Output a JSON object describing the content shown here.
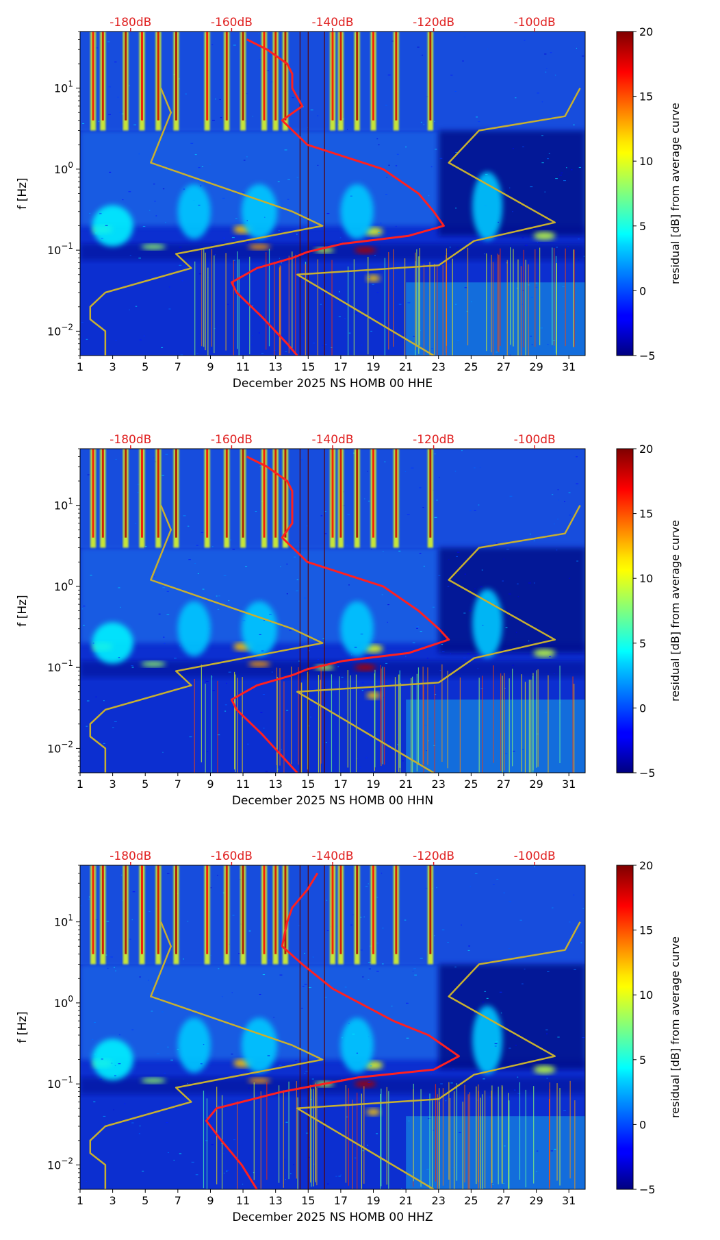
{
  "chart_data": [
    {
      "type": "heatmap",
      "xlabel": "December 2025 NS HOMB 00 HHE",
      "ylabel": "f [Hz]",
      "colorbar_label": "residual [dB] from average curve",
      "x_ticks": [
        "1",
        "3",
        "5",
        "7",
        "9",
        "11",
        "13",
        "15",
        "17",
        "19",
        "21",
        "23",
        "25",
        "27",
        "29",
        "31"
      ],
      "y_ticks": [
        "10^-2",
        "10^-1",
        "10^0",
        "10^1"
      ],
      "top_ticks": [
        "-180dB",
        "-160dB",
        "-140dB",
        "-120dB",
        "-100dB"
      ],
      "colorbar_ticks": [
        "−5",
        "0",
        "5",
        "10",
        "15",
        "20"
      ],
      "xlim": [
        1,
        32
      ],
      "ylim": [
        0.005,
        50
      ],
      "y_scale": "log",
      "clim": [
        -5,
        20
      ],
      "top_axis_range_db": [
        -190,
        -90
      ],
      "colormap": "jet",
      "annotation_color": "#e02020",
      "vertical_day_lines": [
        14.5,
        15.0,
        16.0
      ],
      "bright_columns": [
        1.8,
        2.4,
        3.8,
        4.8,
        5.8,
        6.9,
        8.8,
        10.0,
        11.0,
        12.3,
        13.0,
        13.6,
        16.5,
        17.0,
        18.0,
        19.0,
        20.4,
        22.5
      ],
      "series": [
        {
          "name": "",
          "color": "#ff2020",
          "width": 3,
          "points": [
            [
              -157,
              40
            ],
            [
              -153,
              30
            ],
            [
              -149,
              20
            ],
            [
              -148,
              15
            ],
            [
              -148,
              10
            ],
            [
              -146,
              6
            ],
            [
              -150,
              4
            ],
            [
              -145,
              2
            ],
            [
              -130,
              1
            ],
            [
              -123,
              0.5
            ],
            [
              -120,
              0.3
            ],
            [
              -118,
              0.2
            ],
            [
              -125,
              0.15
            ],
            [
              -138,
              0.12
            ],
            [
              -145,
              0.095
            ],
            [
              -148,
              0.08
            ],
            [
              -155,
              0.06
            ],
            [
              -160,
              0.04
            ],
            [
              -159,
              0.03
            ],
            [
              -154,
              0.015
            ],
            [
              -149,
              0.007
            ],
            [
              -147,
              0.005
            ]
          ]
        },
        {
          "name": "",
          "color": "#c8b030",
          "width": 2.5,
          "points": [
            [
              -174,
              10
            ],
            [
              -172,
              5
            ],
            [
              -176,
              1.2
            ],
            [
              -148,
              0.3
            ],
            [
              -142,
              0.2
            ],
            [
              -171,
              0.09
            ],
            [
              -168,
              0.06
            ],
            [
              -185,
              0.03
            ],
            [
              -188,
              0.02
            ],
            [
              -188,
              0.014
            ],
            [
              -185,
              0.01
            ],
            [
              -185,
              0.005
            ]
          ]
        },
        {
          "name": "",
          "color": "#c8b030",
          "width": 2.5,
          "points": [
            [
              -91,
              10
            ],
            [
              -94,
              4.5
            ],
            [
              -111,
              3
            ],
            [
              -117,
              1.2
            ],
            [
              -96,
              0.22
            ],
            [
              -112,
              0.13
            ],
            [
              -119,
              0.065
            ],
            [
              -147,
              0.05
            ],
            [
              -120,
              0.005
            ]
          ]
        }
      ]
    },
    {
      "type": "heatmap",
      "xlabel": "December 2025 NS HOMB 00 HHN",
      "ylabel": "f [Hz]",
      "colorbar_label": "residual [dB] from average curve",
      "x_ticks": [
        "1",
        "3",
        "5",
        "7",
        "9",
        "11",
        "13",
        "15",
        "17",
        "19",
        "21",
        "23",
        "25",
        "27",
        "29",
        "31"
      ],
      "y_ticks": [
        "10^-2",
        "10^-1",
        "10^0",
        "10^1"
      ],
      "top_ticks": [
        "-180dB",
        "-160dB",
        "-140dB",
        "-120dB",
        "-100dB"
      ],
      "colorbar_ticks": [
        "−5",
        "0",
        "5",
        "10",
        "15",
        "20"
      ],
      "xlim": [
        1,
        32
      ],
      "ylim": [
        0.005,
        50
      ],
      "y_scale": "log",
      "clim": [
        -5,
        20
      ],
      "top_axis_range_db": [
        -190,
        -90
      ],
      "colormap": "jet",
      "annotation_color": "#e02020",
      "vertical_day_lines": [
        14.5,
        15.0,
        16.0
      ],
      "bright_columns": [
        1.8,
        2.4,
        3.8,
        4.8,
        5.8,
        6.9,
        8.8,
        10.0,
        11.0,
        12.3,
        13.0,
        13.6,
        16.5,
        17.0,
        18.0,
        19.0,
        20.4,
        22.5
      ],
      "series": [
        {
          "name": "",
          "color": "#ff2020",
          "width": 3,
          "points": [
            [
              -157,
              40
            ],
            [
              -153,
              30
            ],
            [
              -149,
              20
            ],
            [
              -148,
              15
            ],
            [
              -148,
              10
            ],
            [
              -148,
              6
            ],
            [
              -150,
              4
            ],
            [
              -145,
              2
            ],
            [
              -130,
              1
            ],
            [
              -123,
              0.5
            ],
            [
              -119,
              0.3
            ],
            [
              -117,
              0.22
            ],
            [
              -125,
              0.15
            ],
            [
              -138,
              0.12
            ],
            [
              -145,
              0.095
            ],
            [
              -148,
              0.08
            ],
            [
              -155,
              0.06
            ],
            [
              -160,
              0.04
            ],
            [
              -159,
              0.03
            ],
            [
              -154,
              0.015
            ],
            [
              -147,
              0.005
            ]
          ]
        },
        {
          "name": "",
          "color": "#c8b030",
          "width": 2.5,
          "points": [
            [
              -174,
              10
            ],
            [
              -172,
              5
            ],
            [
              -176,
              1.2
            ],
            [
              -148,
              0.3
            ],
            [
              -142,
              0.2
            ],
            [
              -171,
              0.09
            ],
            [
              -168,
              0.06
            ],
            [
              -185,
              0.03
            ],
            [
              -188,
              0.02
            ],
            [
              -188,
              0.014
            ],
            [
              -185,
              0.01
            ],
            [
              -185,
              0.005
            ]
          ]
        },
        {
          "name": "",
          "color": "#c8b030",
          "width": 2.5,
          "points": [
            [
              -91,
              10
            ],
            [
              -94,
              4.5
            ],
            [
              -111,
              3
            ],
            [
              -117,
              1.2
            ],
            [
              -96,
              0.22
            ],
            [
              -112,
              0.13
            ],
            [
              -119,
              0.065
            ],
            [
              -147,
              0.05
            ],
            [
              -120,
              0.005
            ]
          ]
        }
      ]
    },
    {
      "type": "heatmap",
      "xlabel": "December 2025 NS HOMB 00 HHZ",
      "ylabel": "f [Hz]",
      "colorbar_label": "residual [dB] from average curve",
      "x_ticks": [
        "1",
        "3",
        "5",
        "7",
        "9",
        "11",
        "13",
        "15",
        "17",
        "19",
        "21",
        "23",
        "25",
        "27",
        "29",
        "31"
      ],
      "y_ticks": [
        "10^-2",
        "10^-1",
        "10^0",
        "10^1"
      ],
      "top_ticks": [
        "-180dB",
        "-160dB",
        "-140dB",
        "-120dB",
        "-100dB"
      ],
      "colorbar_ticks": [
        "−5",
        "0",
        "5",
        "10",
        "15",
        "20"
      ],
      "xlim": [
        1,
        32
      ],
      "ylim": [
        0.005,
        50
      ],
      "y_scale": "log",
      "clim": [
        -5,
        20
      ],
      "top_axis_range_db": [
        -190,
        -90
      ],
      "colormap": "jet",
      "annotation_color": "#e02020",
      "vertical_day_lines": [
        14.5,
        15.0,
        16.0
      ],
      "bright_columns": [
        1.8,
        2.4,
        3.8,
        4.8,
        5.8,
        6.9,
        8.8,
        10.0,
        11.0,
        12.3,
        13.0,
        13.6,
        16.5,
        17.0,
        18.0,
        19.0,
        20.4,
        22.5
      ],
      "series": [
        {
          "name": "",
          "color": "#ff2020",
          "width": 3,
          "points": [
            [
              -143,
              40
            ],
            [
              -145,
              25
            ],
            [
              -148,
              15
            ],
            [
              -149,
              10
            ],
            [
              -150,
              5
            ],
            [
              -146,
              3
            ],
            [
              -140,
              1.5
            ],
            [
              -128,
              0.6
            ],
            [
              -121,
              0.4
            ],
            [
              -115,
              0.22
            ],
            [
              -120,
              0.15
            ],
            [
              -135,
              0.12
            ],
            [
              -150,
              0.08
            ],
            [
              -163,
              0.05
            ],
            [
              -165,
              0.035
            ],
            [
              -162,
              0.02
            ],
            [
              -158,
              0.01
            ],
            [
              -155,
              0.005
            ]
          ]
        },
        {
          "name": "",
          "color": "#c8b030",
          "width": 2.5,
          "points": [
            [
              -174,
              10
            ],
            [
              -172,
              5
            ],
            [
              -176,
              1.2
            ],
            [
              -148,
              0.3
            ],
            [
              -142,
              0.2
            ],
            [
              -171,
              0.09
            ],
            [
              -168,
              0.06
            ],
            [
              -185,
              0.03
            ],
            [
              -188,
              0.02
            ],
            [
              -188,
              0.014
            ],
            [
              -185,
              0.01
            ],
            [
              -185,
              0.005
            ]
          ]
        },
        {
          "name": "",
          "color": "#c8b030",
          "width": 2.5,
          "points": [
            [
              -91,
              10
            ],
            [
              -94,
              4.5
            ],
            [
              -111,
              3
            ],
            [
              -117,
              1.2
            ],
            [
              -96,
              0.22
            ],
            [
              -112,
              0.13
            ],
            [
              -119,
              0.065
            ],
            [
              -147,
              0.05
            ],
            [
              -120,
              0.005
            ]
          ]
        }
      ]
    }
  ]
}
